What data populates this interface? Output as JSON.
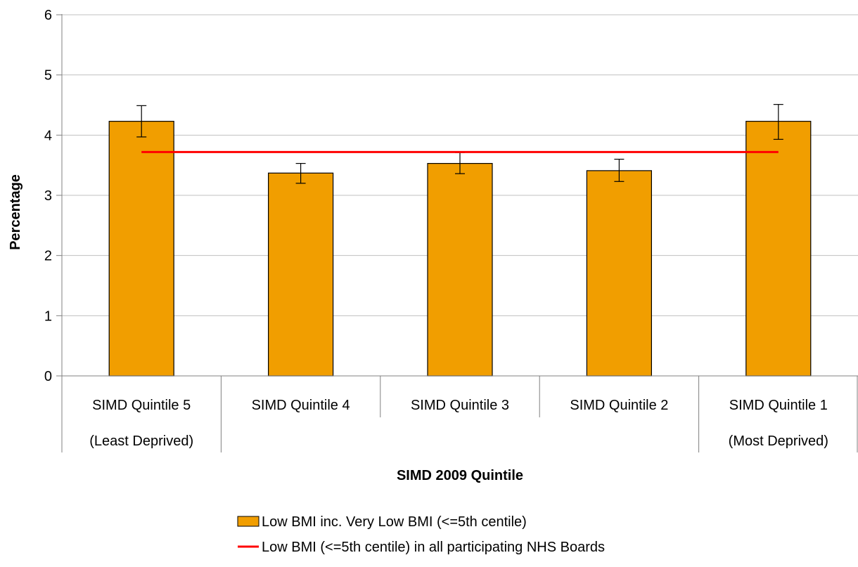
{
  "chart_data": {
    "type": "bar",
    "title": "",
    "xlabel": "SIMD 2009 Quintile",
    "ylabel": "Percentage",
    "ylim": [
      0,
      6
    ],
    "yticks": [
      "0",
      "1",
      "2",
      "3",
      "4",
      "5",
      "6"
    ],
    "grid": true,
    "legend_position": "bottom",
    "categories": [
      {
        "line1": "SIMD Quintile 5",
        "line2": "(Least Deprived)"
      },
      {
        "line1": "SIMD Quintile 4",
        "line2": ""
      },
      {
        "line1": "SIMD Quintile 3",
        "line2": ""
      },
      {
        "line1": "SIMD Quintile 2",
        "line2": ""
      },
      {
        "line1": "SIMD Quintile 1",
        "line2": "(Most Deprived)"
      }
    ],
    "series": [
      {
        "name": "Low BMI inc. Very Low BMI (<=5th centile)",
        "kind": "bar",
        "color": "#F19E00",
        "values": [
          4.23,
          3.37,
          3.53,
          3.41,
          4.23
        ],
        "error_low": [
          3.97,
          3.2,
          3.36,
          3.23,
          3.93
        ],
        "error_high": [
          4.49,
          3.53,
          3.71,
          3.6,
          4.51
        ]
      },
      {
        "name": "Low BMI (<=5th centile) in all participating NHS Boards",
        "kind": "line",
        "color": "#FF0000",
        "value": 3.72
      }
    ]
  }
}
